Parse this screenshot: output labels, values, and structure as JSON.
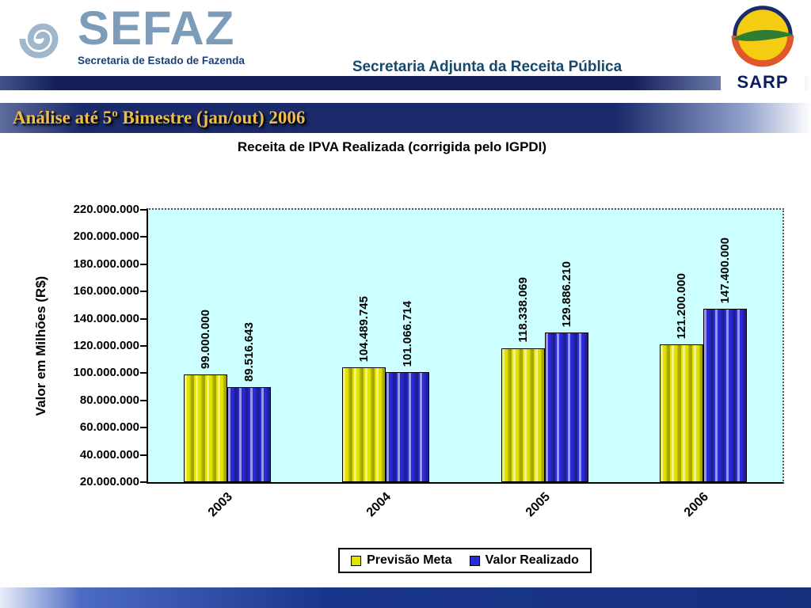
{
  "header": {
    "org_name": "SEFAZ",
    "org_subtitle": "Secretaria de Estado de Fazenda",
    "department": "Secretaria Adjunta da Receita Pública",
    "sarp_label": "SARP"
  },
  "title_bar": {
    "text": "Análise até 5º Bimestre (jan/out) 2006"
  },
  "chart_data": {
    "type": "bar",
    "title": "Receita de IPVA Realizada (corrigida pelo IGPDI)",
    "ylabel": "Valor em Milhões (R$)",
    "categories": [
      "2003",
      "2004",
      "2005",
      "2006"
    ],
    "series": [
      {
        "name": "Previsão Meta",
        "color": "#E3E300",
        "values": [
          99000000,
          104489745,
          118338069,
          121200000
        ],
        "labels": [
          "99.000.000",
          "104.489.745",
          "118.338.069",
          "121.200.000"
        ]
      },
      {
        "name": "Valor Realizado",
        "color": "#2A2AD4",
        "values": [
          89516643,
          101066714,
          129886210,
          147400000
        ],
        "labels": [
          "89.516.643",
          "101.066.714",
          "129.886.210",
          "147.400.000"
        ]
      }
    ],
    "ylim": [
      20000000,
      220000000
    ],
    "ytick_step": 20000000,
    "ytick_labels": [
      "220.000.000",
      "200.000.000",
      "180.000.000",
      "160.000.000",
      "140.000.000",
      "120.000.000",
      "100.000.000",
      "80.000.000",
      "60.000.000",
      "40.000.000",
      "20.000.000"
    ],
    "plot_background": "#CCFFFF",
    "gridlines": "none",
    "legend_position": "bottom-center"
  }
}
